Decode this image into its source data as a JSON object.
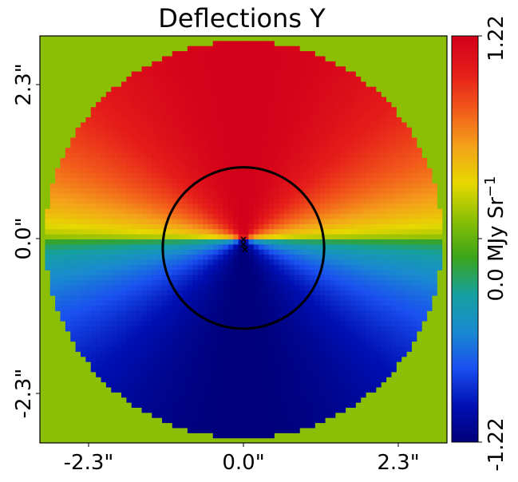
{
  "chart_data": {
    "type": "heatmap",
    "title": "Deflections Y",
    "x_ticks": [
      "-2.3\"",
      "0.0\"",
      "2.3\""
    ],
    "y_ticks": [
      "2.3\"",
      "0.0\"",
      "-2.3\""
    ],
    "x_tick_values": [
      -2.3,
      0.0,
      2.3
    ],
    "y_tick_values": [
      2.3,
      0.0,
      -2.3
    ],
    "extent": [
      -2.85,
      2.85,
      -2.85,
      2.85
    ],
    "grid": false,
    "mask_radius": 2.78,
    "critical_curve": {
      "center": [
        0.0,
        -0.12
      ],
      "radius": 1.13
    },
    "markers": [
      {
        "x": 0.0,
        "y": 0.0
      },
      {
        "x": 0.0,
        "y": -0.07
      },
      {
        "x": 0.02,
        "y": -0.14
      }
    ],
    "colorbar": {
      "label": "0.0 MJy Sr",
      "label_superscript": "−1",
      "min_label": "-1.22",
      "max_label": "1.22",
      "min": -1.22,
      "max": 1.22,
      "colormap_stops": [
        "#00007a",
        "#0010b4",
        "#1a4ff0",
        "#1a8ad0",
        "#15a0a0",
        "#3aa41a",
        "#8abf05",
        "#e6d800",
        "#f4a21a",
        "#f25a1a",
        "#e51c1a",
        "#d3001a"
      ]
    },
    "masked_color": "#8abf05"
  }
}
